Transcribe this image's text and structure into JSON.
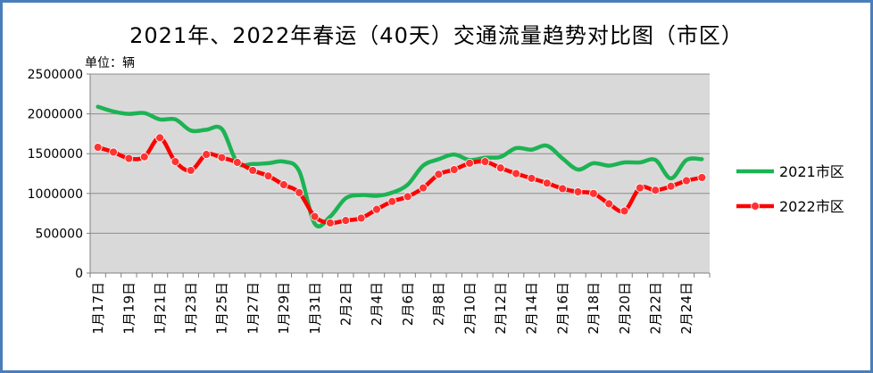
{
  "chart_data": {
    "type": "line",
    "title": "2021年、2022年春运（40天）交通流量趋势对比图（市区）",
    "unit_label": "单位：辆",
    "ylim": [
      0,
      2500000
    ],
    "yticks": [
      0,
      500000,
      1000000,
      1500000,
      2000000,
      2500000
    ],
    "ytick_labels": [
      "0",
      "500000",
      "1000000",
      "1500000",
      "2000000",
      "2500000"
    ],
    "xtick_labels": [
      "1月17日",
      "1月19日",
      "1月21日",
      "1月23日",
      "1月25日",
      "1月27日",
      "1月29日",
      "1月31日",
      "2月2日",
      "2月4日",
      "2月6日",
      "2月8日",
      "2月10日",
      "2月12日",
      "2月14日",
      "2月16日",
      "2月18日",
      "2月20日",
      "2月22日",
      "2月24日"
    ],
    "legend_position": "right",
    "grid": true,
    "colors": {
      "plot_bg": "#d9d9d9",
      "series_2021": "#1db354",
      "series_2022": "#ff0000",
      "frame": "#4a7ebb"
    },
    "series": [
      {
        "name": "2021市区",
        "values": [
          2090000,
          2030000,
          2000000,
          2010000,
          1930000,
          1930000,
          1790000,
          1800000,
          1810000,
          1390000,
          1370000,
          1380000,
          1400000,
          1280000,
          620000,
          710000,
          940000,
          980000,
          970000,
          1010000,
          1110000,
          1350000,
          1430000,
          1490000,
          1420000,
          1450000,
          1460000,
          1570000,
          1550000,
          1600000,
          1440000,
          1300000,
          1380000,
          1350000,
          1390000,
          1390000,
          1420000,
          1190000,
          1420000,
          1430000
        ]
      },
      {
        "name": "2022市区",
        "values": [
          1580000,
          1520000,
          1440000,
          1460000,
          1700000,
          1400000,
          1290000,
          1490000,
          1450000,
          1390000,
          1290000,
          1220000,
          1110000,
          1010000,
          710000,
          630000,
          660000,
          690000,
          800000,
          900000,
          960000,
          1070000,
          1240000,
          1300000,
          1380000,
          1400000,
          1320000,
          1250000,
          1190000,
          1130000,
          1060000,
          1020000,
          1000000,
          870000,
          780000,
          1070000,
          1040000,
          1090000,
          1160000,
          1200000
        ]
      }
    ]
  }
}
